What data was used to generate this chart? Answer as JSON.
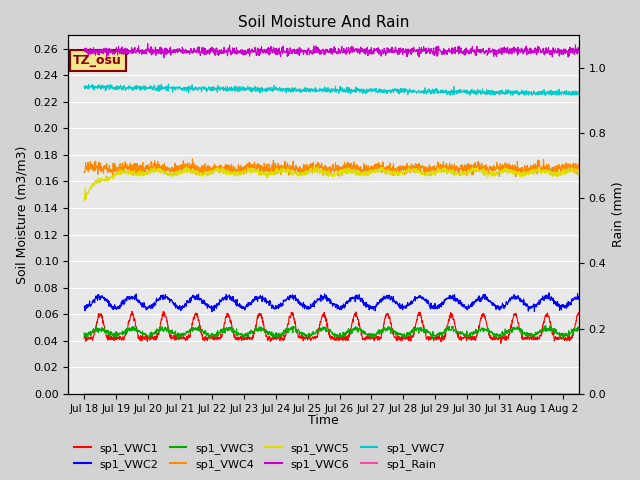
{
  "title": "Soil Moisture And Rain",
  "xlabel": "Time",
  "ylabel_left": "Soil Moisture (m3/m3)",
  "ylabel_right": "Rain (mm)",
  "ylim_left": [
    0.0,
    0.27
  ],
  "ylim_right": [
    0.0,
    1.1
  ],
  "yticks_left": [
    0.0,
    0.02,
    0.04,
    0.06,
    0.08,
    0.1,
    0.12,
    0.14,
    0.16,
    0.18,
    0.2,
    0.22,
    0.24,
    0.26
  ],
  "yticks_right": [
    0.0,
    0.2,
    0.4,
    0.6,
    0.8,
    1.0
  ],
  "n_points": 1680,
  "days": 16,
  "background_color": "#d3d3d3",
  "plot_bg_color": "#e8e8e8",
  "colors": {
    "VWC1": "#ff0000",
    "VWC2": "#0000ff",
    "VWC3": "#00aa00",
    "VWC4": "#ff8800",
    "VWC5": "#dddd00",
    "VWC6": "#cc00cc",
    "VWC7": "#00cccc",
    "Rain": "#ff44aa"
  },
  "annotation_text": "TZ_osu",
  "annotation_color": "#8b0000",
  "annotation_bg": "#f0e68c",
  "annotation_border": "#8b0000",
  "xticklabels": [
    "Jul 18",
    "Jul 19",
    "Jul 20",
    "Jul 21",
    "Jul 22",
    "Jul 23",
    "Jul 24",
    "Jul 25",
    "Jul 26",
    "Jul 27",
    "Jul 28",
    "Jul 29",
    "Jul 30",
    "Jul 31",
    "Aug 1",
    "Aug 2"
  ]
}
